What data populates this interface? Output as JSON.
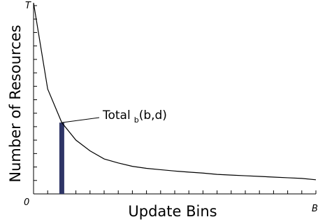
{
  "chart_data": {
    "type": "line",
    "xlabel": "Update Bins",
    "ylabel": "Number of Resources",
    "x_start_label": "0",
    "x_end_label": "B",
    "y_top_label": "T",
    "x_tick_count": 20,
    "y_tick_count": 14,
    "xlim": [
      0,
      20
    ],
    "ylim": [
      0,
      14
    ],
    "series": [
      {
        "x": [
          0,
          1,
          2,
          3,
          4,
          5,
          6,
          7,
          8,
          9,
          10,
          11,
          12,
          13,
          14,
          15,
          16,
          17,
          18,
          19,
          20
        ],
        "y": [
          14.2,
          7.8,
          5.3,
          4.0,
          3.2,
          2.6,
          2.3,
          2.05,
          1.9,
          1.8,
          1.7,
          1.62,
          1.55,
          1.45,
          1.4,
          1.35,
          1.3,
          1.25,
          1.2,
          1.15,
          1.05
        ]
      }
    ],
    "highlight_bar": {
      "x": 2,
      "value": 5.3,
      "color": "#2e3566"
    },
    "annotation": {
      "text": "Total",
      "subscript": "b",
      "suffix": "(b,d)",
      "points_to_x": 2
    }
  }
}
